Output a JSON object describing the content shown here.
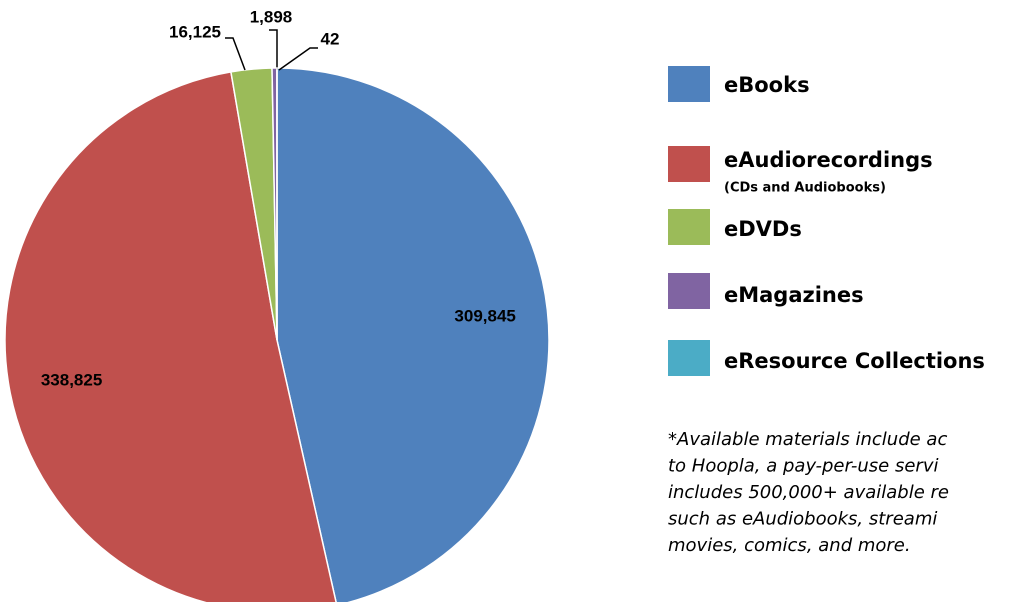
{
  "chart_data": {
    "type": "pie",
    "categories": [
      "eBooks",
      "eAudiorecordings",
      "eDVDs",
      "eMagazines",
      "eResource Collections"
    ],
    "values": [
      309845,
      338825,
      16125,
      1898,
      42
    ],
    "value_labels": [
      "309,845",
      "338,825",
      "16,125",
      "1,898",
      "42"
    ],
    "colors": [
      "#4f81bd",
      "#c0504d",
      "#9bbb59",
      "#8064a2",
      "#4bacc6"
    ],
    "legend_subtitle": "(CDs and Audiobooks)",
    "footnote": [
      "*Available materials include ac",
      "to Hoopla, a pay-per-use servi",
      "includes 500,000+ available re",
      "such as eAudiobooks, streami",
      "movies, comics, and more."
    ]
  }
}
